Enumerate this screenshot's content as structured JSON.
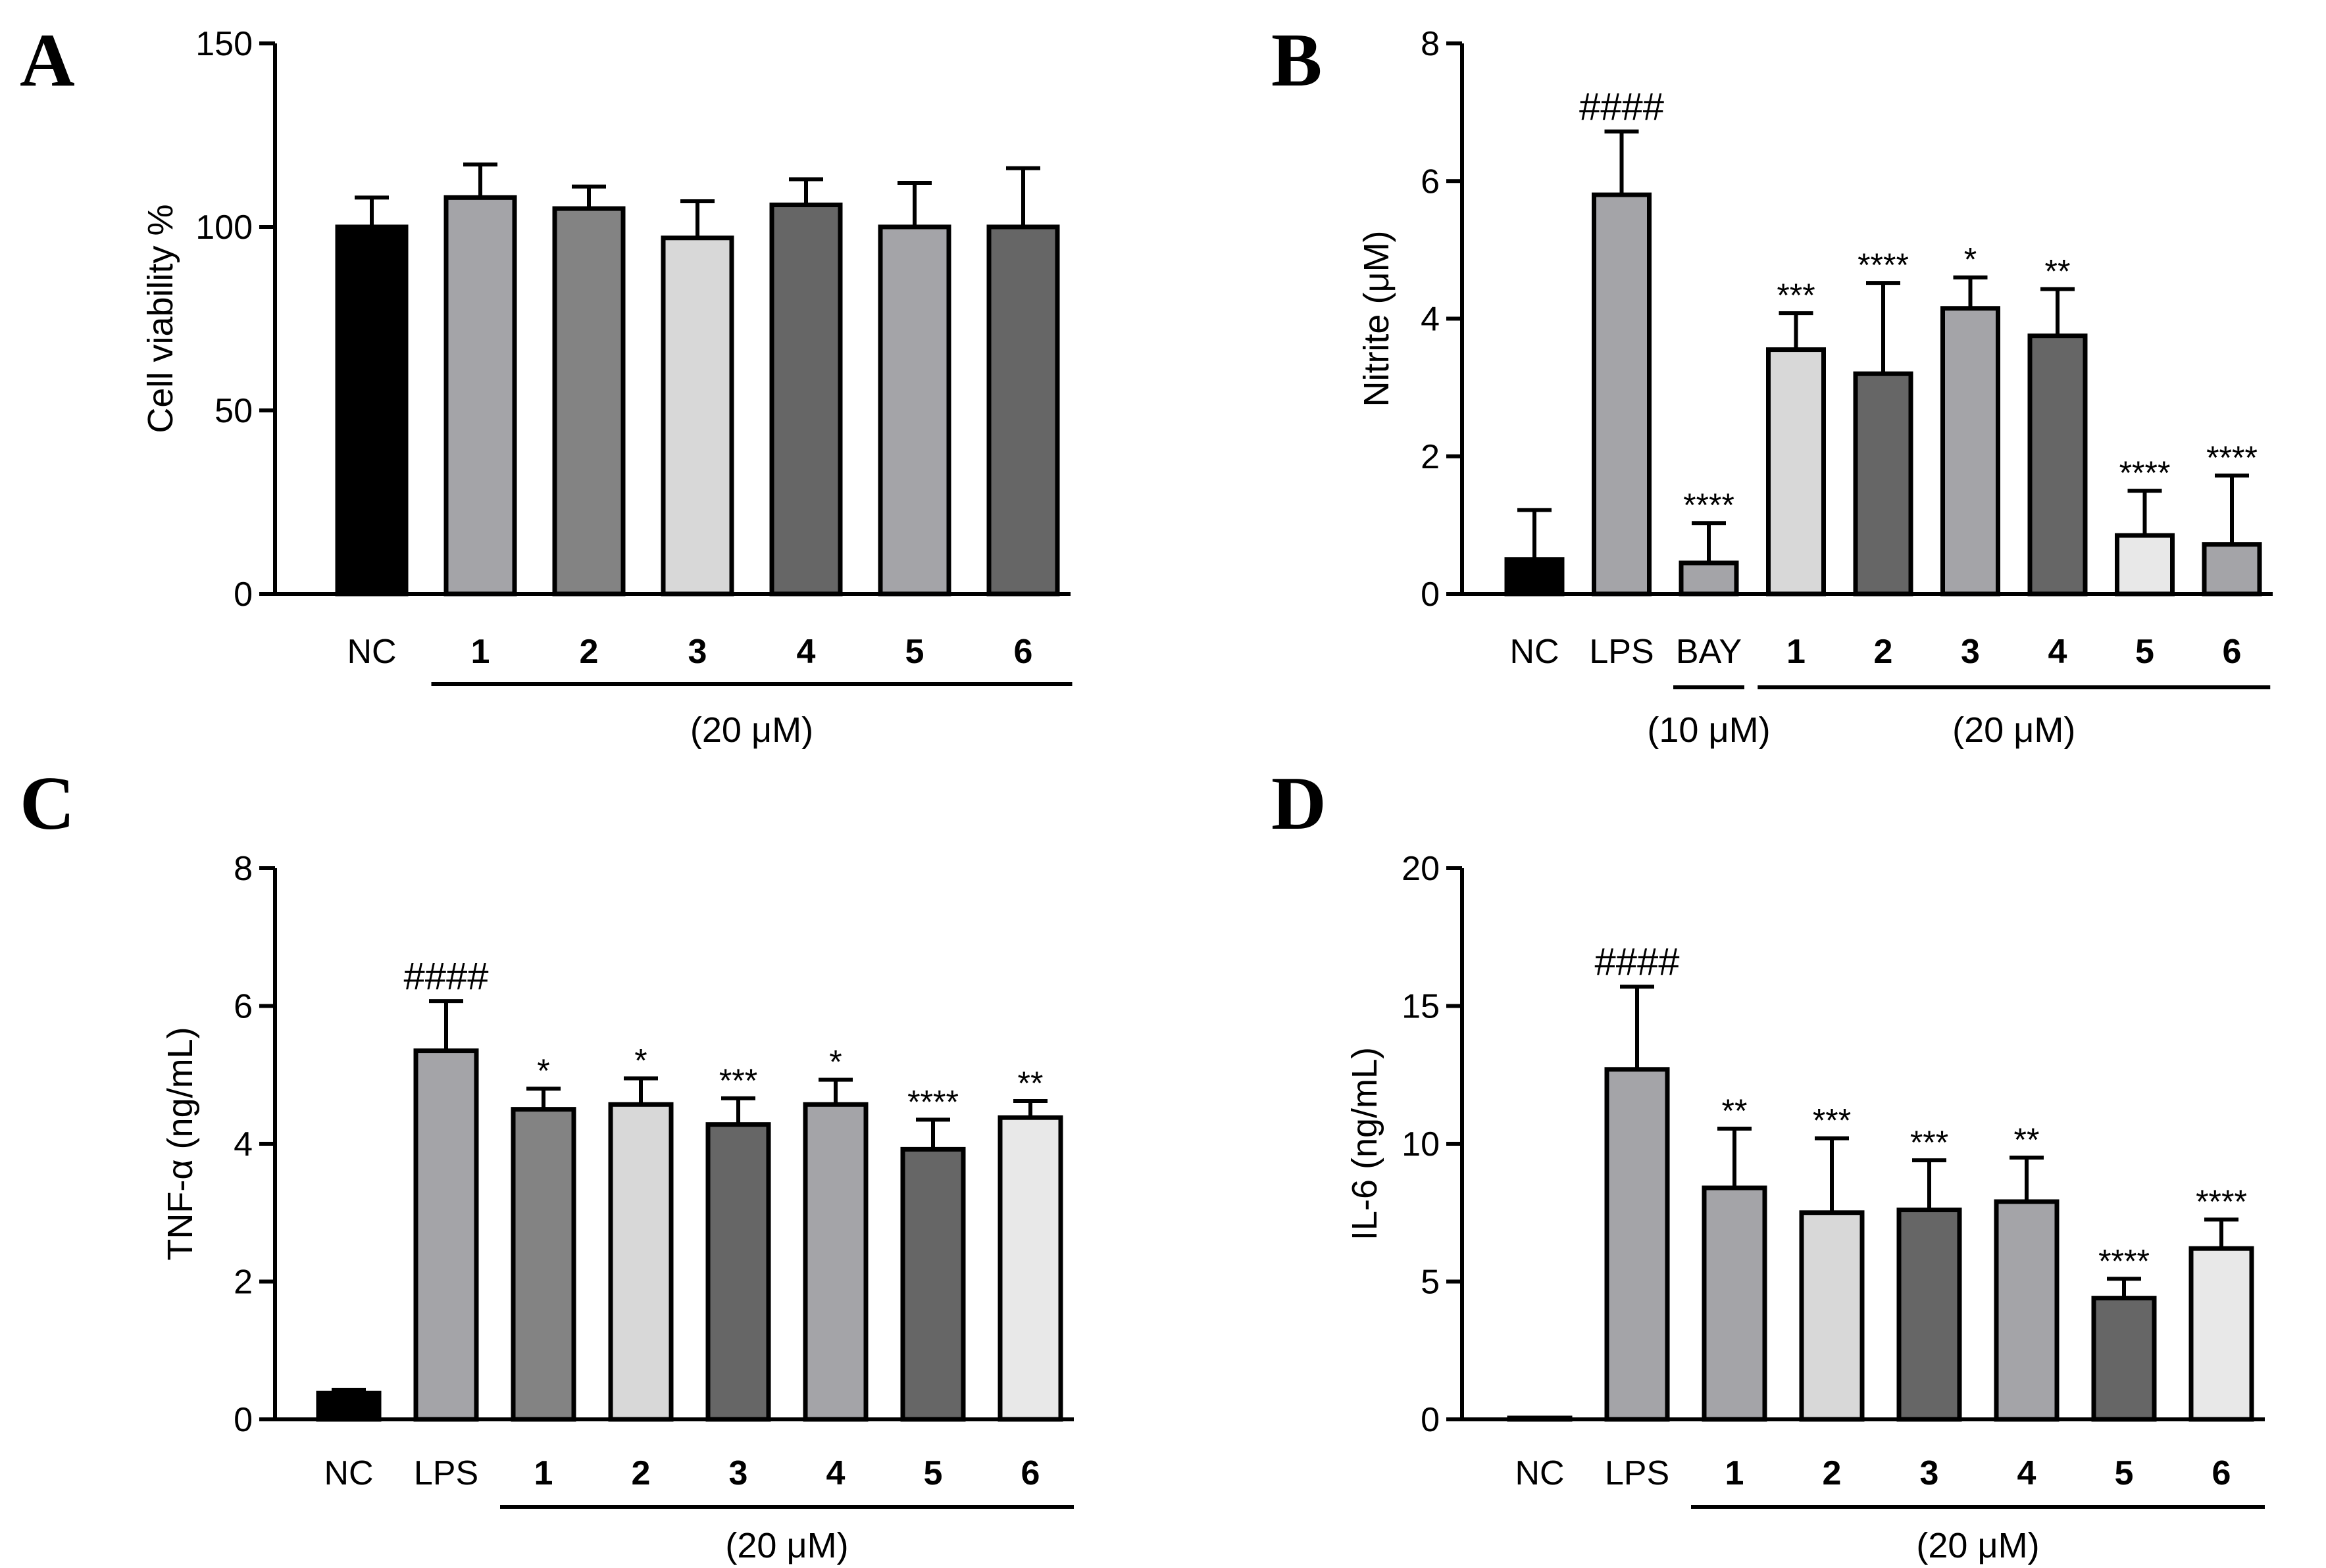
{
  "chart_data": [
    {
      "panel": "A",
      "type": "bar",
      "ylabel": "Cell viability %",
      "ylim": [
        0,
        150
      ],
      "yticks": [
        0,
        50,
        100,
        150
      ],
      "categories": [
        "NC",
        "1",
        "2",
        "3",
        "4",
        "5",
        "6"
      ],
      "values": [
        100,
        108,
        105,
        97,
        106,
        100,
        100
      ],
      "errors": [
        8,
        9,
        6,
        10,
        7,
        12,
        16
      ],
      "significance": [
        "",
        "",
        "",
        "",
        "",
        "",
        ""
      ],
      "colors": [
        "#000000",
        "#a4a4a8",
        "#838383",
        "#d8d8d8",
        "#666666",
        "#a4a4a8",
        "#666666"
      ],
      "groups": [
        {
          "label": "(20 μM)",
          "from": 1,
          "to": 6
        }
      ]
    },
    {
      "panel": "B",
      "type": "bar",
      "ylabel": "Nitrite (μM)",
      "ylim": [
        0,
        8
      ],
      "yticks": [
        0,
        2,
        4,
        6,
        8
      ],
      "categories": [
        "NC",
        "LPS",
        "BAY",
        "1",
        "2",
        "3",
        "4",
        "5",
        "6"
      ],
      "values": [
        0.5,
        5.8,
        0.45,
        3.55,
        3.2,
        4.15,
        3.75,
        0.85,
        0.72
      ],
      "errors": [
        0.72,
        0.92,
        0.58,
        0.53,
        1.32,
        0.45,
        0.68,
        0.65,
        1.0
      ],
      "significance": [
        "",
        "####",
        "****",
        "***",
        "****",
        "*",
        "**",
        "****",
        "****"
      ],
      "colors": [
        "#000000",
        "#a4a4a8",
        "#a4a4a8",
        "#d8d8d8",
        "#666666",
        "#a4a4a8",
        "#666666",
        "#e8e8e8",
        "#a4a4a8"
      ],
      "groups": [
        {
          "label": "(10 μM)",
          "from": 2,
          "to": 2
        },
        {
          "label": "(20 μM)",
          "from": 3,
          "to": 8
        }
      ]
    },
    {
      "panel": "C",
      "type": "bar",
      "ylabel": "TNF-α (ng/mL)",
      "ylim": [
        0,
        8
      ],
      "yticks": [
        0,
        2,
        4,
        6,
        8
      ],
      "categories": [
        "NC",
        "LPS",
        "1",
        "2",
        "3",
        "4",
        "5",
        "6"
      ],
      "values": [
        0.38,
        5.35,
        4.5,
        4.57,
        4.28,
        4.57,
        3.92,
        4.38
      ],
      "errors": [
        0.05,
        0.72,
        0.3,
        0.38,
        0.38,
        0.36,
        0.43,
        0.24
      ],
      "significance": [
        "",
        "####",
        "*",
        "*",
        "***",
        "*",
        "****",
        "**"
      ],
      "colors": [
        "#000000",
        "#a4a4a8",
        "#838383",
        "#d8d8d8",
        "#666666",
        "#a4a4a8",
        "#666666",
        "#e8e8e8"
      ],
      "groups": [
        {
          "label": "(20 μM)",
          "from": 2,
          "to": 7
        }
      ]
    },
    {
      "panel": "D",
      "type": "bar",
      "ylabel": "IL-6 (ng/mL)",
      "ylim": [
        0,
        20
      ],
      "yticks": [
        0,
        5,
        10,
        15,
        20
      ],
      "categories": [
        "NC",
        "LPS",
        "1",
        "2",
        "3",
        "4",
        "5",
        "6"
      ],
      "values": [
        0.05,
        12.7,
        8.4,
        7.5,
        7.6,
        7.9,
        4.4,
        6.2
      ],
      "errors": [
        0,
        3.0,
        2.15,
        2.7,
        1.8,
        1.6,
        0.7,
        1.05
      ],
      "significance": [
        "",
        "####",
        "**",
        "***",
        "***",
        "**",
        "****",
        "****"
      ],
      "colors": [
        "#000000",
        "#a4a4a8",
        "#a4a4a8",
        "#d8d8d8",
        "#666666",
        "#a4a4a8",
        "#666666",
        "#e8e8e8"
      ],
      "groups": [
        {
          "label": "(20 μM)",
          "from": 2,
          "to": 7
        }
      ]
    }
  ]
}
